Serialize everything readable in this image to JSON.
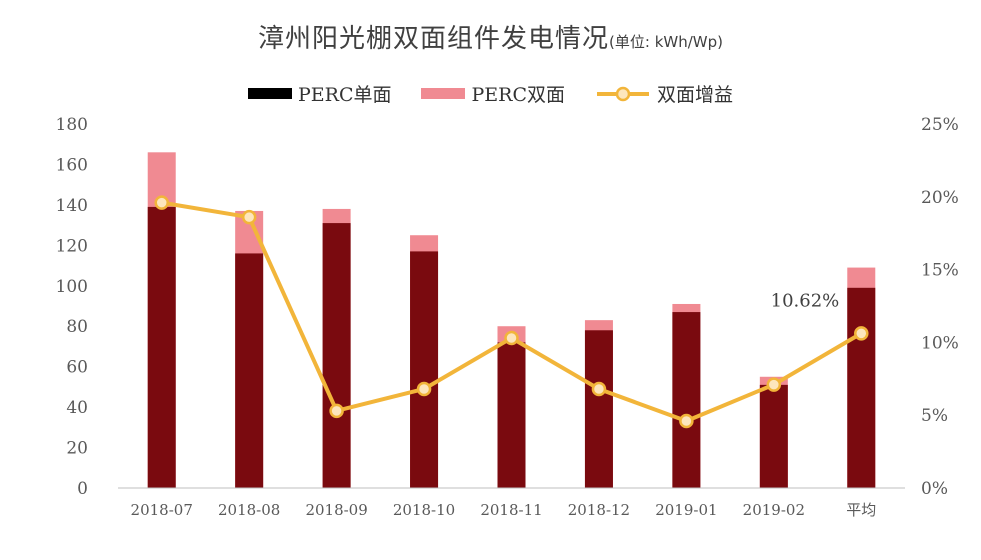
{
  "colors": {
    "single": "#7a0a0f",
    "double": "#f08a92",
    "gain_line": "#f2b53a",
    "gain_marker_fill": "#fde6bd",
    "axis": "#bfbfbf",
    "tick": "#595959",
    "legend_single": "#000000"
  },
  "chart_data": {
    "type": "bar",
    "title": "漳州阳光棚双面组件发电情况",
    "unit_label": "(单位: kWh/Wp)",
    "categories": [
      "2018-07",
      "2018-08",
      "2018-09",
      "2018-10",
      "2018-11",
      "2018-12",
      "2019-01",
      "2019-02",
      "平均"
    ],
    "series": [
      {
        "name": "PERC单面",
        "kind": "bar",
        "axis": "left",
        "values": [
          139,
          116,
          131,
          117,
          72,
          78,
          87,
          51,
          99
        ]
      },
      {
        "name": "PERC双面",
        "kind": "bar",
        "axis": "left",
        "overlay": true,
        "values": [
          166,
          137,
          138,
          125,
          80,
          83,
          91,
          55,
          109
        ]
      },
      {
        "name": "双面增益",
        "kind": "line",
        "axis": "right",
        "values": [
          19.6,
          18.6,
          5.3,
          6.8,
          10.3,
          6.8,
          4.6,
          7.1,
          10.62
        ]
      }
    ],
    "left_axis": {
      "min": 0,
      "max": 180,
      "step": 20,
      "ticks": [
        "0",
        "20",
        "40",
        "60",
        "80",
        "100",
        "120",
        "140",
        "160",
        "180"
      ]
    },
    "right_axis": {
      "min": 0,
      "max": 25,
      "step": 5,
      "ticks": [
        "0%",
        "5%",
        "10%",
        "15%",
        "20%",
        "25%"
      ]
    },
    "annotations": [
      {
        "category_index": 8,
        "text": "10.62%"
      }
    ],
    "legend": [
      "PERC单面",
      "PERC双面",
      "双面增益"
    ],
    "legend_position": "top-center"
  }
}
